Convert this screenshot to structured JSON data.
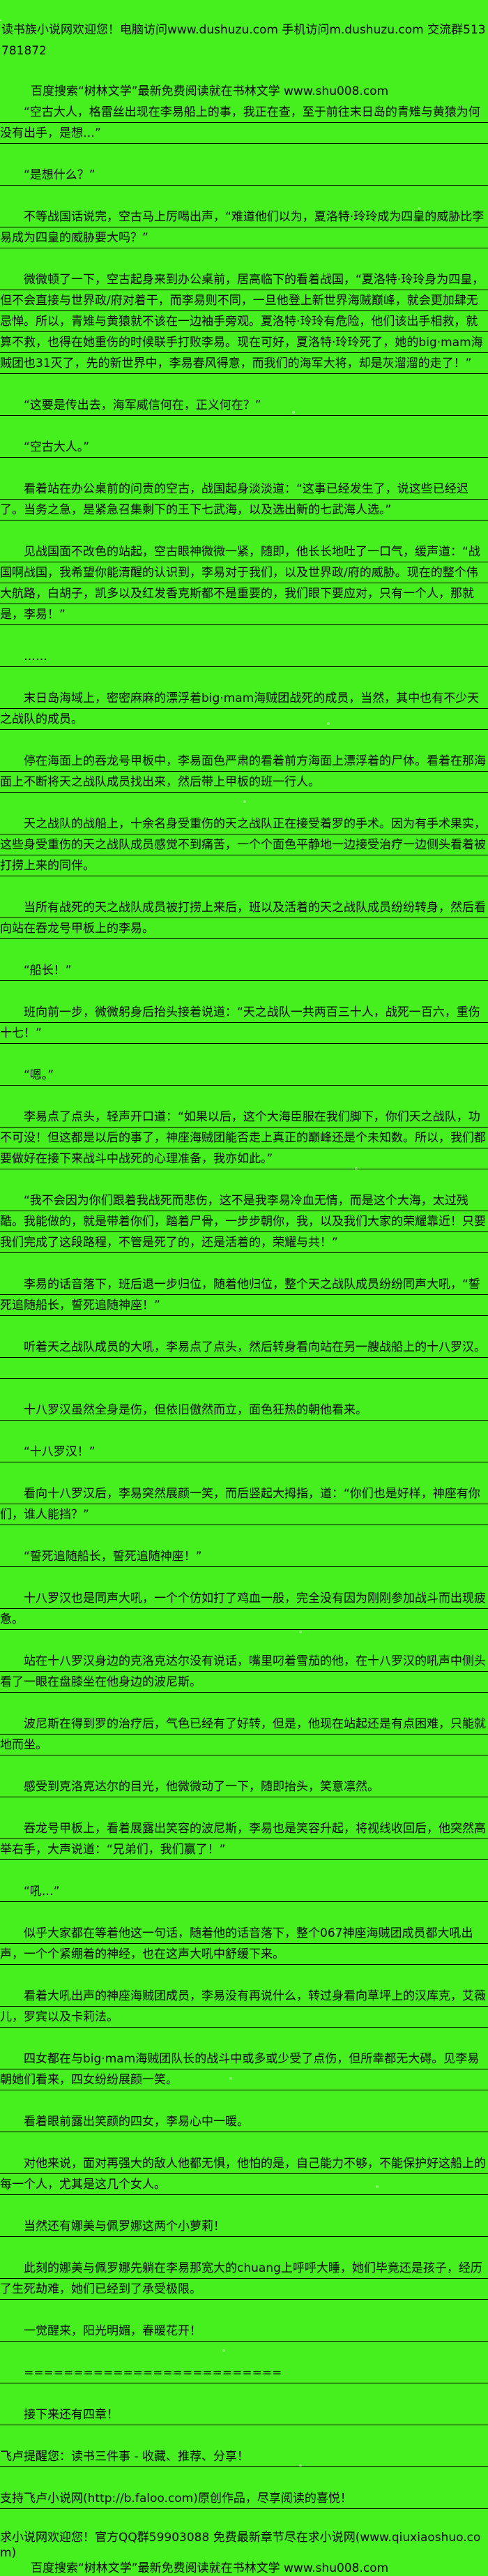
{
  "page": {
    "background_color": "#46F01E",
    "text_color": "#000000"
  },
  "header": {
    "line1": "读书族小说网欢迎您！电脑访问www.dushuzu.com 手机访问m.dushuzu.com 交流群513781872",
    "line2": "百度搜索“树林文学”最新免费阅读就在书林文学 www.shu008.com"
  },
  "content": {
    "paragraphs": [
      {
        "text": "“空古大人，格雷丝出现在李易船上的事，我正在查，至于前往末日岛的青雉与黄猿为何没有出手，是想…”",
        "indent": true,
        "underline": true,
        "tight": false
      },
      {
        "text": "“是想什么？”",
        "indent": true,
        "underline": true,
        "tight": false
      },
      {
        "text": "不等战国话说完，空古马上厉喝出声，“难道他们以为，夏洛特·玲玲成为四皇的威胁比李易成为四皇的威胁要大吗？”",
        "indent": true,
        "underline": true,
        "tight": false
      },
      {
        "text": "微微顿了一下，空古起身来到办公桌前，居高临下的看着战国，“夏洛特·玲玲身为四皇，但不会直接与世界政/府对着干，而李易则不同，一旦他登上新世界海贼巅峰，就会更加肆无忌惮。所以，青雉与黄猿就不该在一边袖手旁观。夏洛特·玲玲有危险，他们该出手相救，就算不救，也得在她重伤的时候联手打败李易。现在可好，夏洛特·玲玲死了，她的big·mam海贼团也31灭了，先的新世界中，李易春风得意，而我们的海军大将，却是灰溜溜的走了！”",
        "indent": true,
        "underline": true,
        "tight": false
      },
      {
        "text": "“这要是传出去，海军威信何在，正义何在？”",
        "indent": true,
        "underline": true,
        "tight": false
      },
      {
        "text": "“空古大人。”",
        "indent": true,
        "underline": true,
        "tight": false
      },
      {
        "text": "看着站在办公桌前的问责的空古，战国起身淡淡道：“这事已经发生了，说这些已经迟了。当务之急，是紧急召集剩下的王下七武海，以及选出新的七武海人选。”",
        "indent": true,
        "underline": true,
        "tight": false
      },
      {
        "text": "见战国面不改色的站起，空古眼神微微一紧，随即，他长长地吐了一口气，缓声道：“战国啊战国，我希望你能清醒的认识到，李易对于我们，以及世界政/府的威胁。现在的整个伟大航路，白胡子，凯多以及红发香克斯都不是重要的，我们眼下要应对，只有一个人，那就是，李易！”",
        "indent": true,
        "underline": true,
        "tight": false
      },
      {
        "text": "……",
        "indent": true,
        "underline": true,
        "tight": false
      },
      {
        "text": "末日岛海域上，密密麻麻的漂浮着big·mam海贼团战死的成员，当然，其中也有不少天之战队的成员。",
        "indent": true,
        "underline": true,
        "tight": false
      },
      {
        "text": "停在海面上的吞龙号甲板中，李易面色严肃的看着前方海面上漂浮着的尸体。看着在那海面上不断将天之战队成员找出来，然后带上甲板的班一行人。",
        "indent": true,
        "underline": true,
        "tight": false
      },
      {
        "text": "天之战队的战船上，十余名身受重伤的天之战队正在接受着罗的手术。因为有手术果实，这些身受重伤的天之战队成员感觉不到痛苦，一个个面色平静地一边接受治疗一边侧头看着被打捞上来的同伴。",
        "indent": true,
        "underline": true,
        "tight": false
      },
      {
        "text": "当所有战死的天之战队成员被打捞上来后，班以及活着的天之战队成员纷纷转身，然后看向站在吞龙号甲板上的李易。",
        "indent": true,
        "underline": true,
        "tight": false
      },
      {
        "text": "“船长！”",
        "indent": true,
        "underline": true,
        "tight": false
      },
      {
        "text": "班向前一步，微微躬身后抬头接着说道：“天之战队一共两百三十人，战死一百六，重伤十七！”",
        "indent": true,
        "underline": true,
        "tight": false
      },
      {
        "text": "“嗯。”",
        "indent": true,
        "underline": true,
        "tight": false
      },
      {
        "text": "李易点了点头，轻声开口道：“如果以后，这个大海臣服在我们脚下，你们天之战队，功不可没！但这都是以后的事了，神座海贼团能否走上真正的巅峰还是个未知数。所以，我们都要做好在接下来战斗中战死的心理准备，我亦如此。”",
        "indent": true,
        "underline": true,
        "tight": false
      },
      {
        "text": "“我不会因为你们跟着我战死而悲伤，这不是我李易冷血无情，而是这个大海，太过残酷。我能做的，就是带着你们，踏着尸骨，一步步朝你，我，以及我们大家的荣耀靠近！只要我们完成了这段路程，不管是死了的，还是活着的，荣耀与共！”",
        "indent": true,
        "underline": true,
        "tight": false
      },
      {
        "text": "李易的话音落下，班后退一步归位，随着他归位，整个天之战队成员纷纷同声大吼，“誓死追随船长，誓死追随神座！”",
        "indent": true,
        "underline": true,
        "tight": false
      },
      {
        "text": "听着天之战队成员的大吼，李易点了点头，然后转身看向站在另一艘战船上的十八罗汉。",
        "indent": true,
        "underline": true,
        "tight": true
      },
      {
        "text": "",
        "indent": false,
        "underline": true,
        "tight": false
      },
      {
        "text": "十八罗汉虽然全身是伤，但依旧傲然而立，面色狂热的朝他看来。",
        "indent": true,
        "underline": true,
        "tight": false
      },
      {
        "text": "“十八罗汉！”",
        "indent": true,
        "underline": true,
        "tight": false
      },
      {
        "text": "看向十八罗汉后，李易突然展颜一笑，而后竖起大拇指，道：“你们也是好样，神座有你们，谁人能挡？”",
        "indent": true,
        "underline": true,
        "tight": false
      },
      {
        "text": "“誓死追随船长，誓死追随神座！”",
        "indent": true,
        "underline": true,
        "tight": false
      },
      {
        "text": "十八罗汉也是同声大吼，一个个仿如打了鸡血一般，完全没有因为刚刚参加战斗而出现疲惫。",
        "indent": true,
        "underline": true,
        "tight": false
      },
      {
        "text": "站在十八罗汉身边的克洛克达尔没有说话，嘴里叼着雪茄的他，在十八罗汉的吼声中侧头看了一眼在盘膝坐在他身边的波尼斯。",
        "indent": true,
        "underline": true,
        "tight": false
      },
      {
        "text": "波尼斯在得到罗的治疗后，气色已经有了好转，但是，他现在站起还是有点困难，只能就地而坐。",
        "indent": true,
        "underline": true,
        "tight": false
      },
      {
        "text": "感受到克洛克达尔的目光，他微微动了一下，随即抬头，笑意凛然。",
        "indent": true,
        "underline": true,
        "tight": false
      },
      {
        "text": "吞龙号甲板上，看着展露出笑容的波尼斯，李易也是笑容升起，将视线收回后，他突然高举右手，大声说道：“兄弟们，我们赢了！”",
        "indent": true,
        "underline": true,
        "tight": false
      },
      {
        "text": "“吼…”",
        "indent": true,
        "underline": true,
        "tight": false
      },
      {
        "text": "似乎大家都在等着他这一句话，随着他的话音落下，整个067神座海贼团成员都大吼出声，一个个紧绷着的神经，也在这声大吼中舒缓下来。",
        "indent": true,
        "underline": true,
        "tight": false
      },
      {
        "text": "看着大吼出声的神座海贼团成员，李易没有再说什么，转过身看向草坪上的汉库克，艾薇儿，罗宾以及卡莉法。",
        "indent": true,
        "underline": true,
        "tight": false
      },
      {
        "text": "四女都在与big·mam海贼团队长的战斗中或多或少受了点伤，但所幸都无大碍。见李易朝她们看来，四女纷纷展颜一笑。",
        "indent": true,
        "underline": true,
        "tight": false
      },
      {
        "text": "看着眼前露出笑颜的四女，李易心中一暖。",
        "indent": true,
        "underline": true,
        "tight": false
      },
      {
        "text": "对他来说，面对再强大的敌人他都无惧，他怕的是，自己能力不够，不能保护好这船上的每一个人，尤其是这几个女人。",
        "indent": true,
        "underline": true,
        "tight": false
      },
      {
        "text": "当然还有娜美与佩罗娜这两个小萝莉！",
        "indent": true,
        "underline": true,
        "tight": false
      },
      {
        "text": "此刻的娜美与佩罗娜先躺在李易那宽大的chuang上呼呼大睡，她们毕竟还是孩子，经历了生死劫难，她们已经到了承受极限。",
        "indent": true,
        "underline": true,
        "tight": false
      },
      {
        "text": "一觉醒来，阳光明媚，春暖花开！",
        "indent": true,
        "underline": true,
        "tight": false
      },
      {
        "text": "==========================",
        "indent": true,
        "underline": true,
        "tight": false
      },
      {
        "text": "接下来还有四章！",
        "indent": true,
        "underline": true,
        "tight": false
      },
      {
        "text": "飞卢提醒您：读书三件事 - 收藏、推荐、分享！",
        "indent": false,
        "underline": true,
        "tight": false
      },
      {
        "text": "支持飞卢小说网(http://b.faloo.com)原创作品，尽享阅读的喜悦！",
        "indent": false,
        "underline": true,
        "tight": false
      }
    ]
  },
  "footer": {
    "line1": "求小说网欢迎您！官方QQ群59903088 免费最新章节尽在求小说网(www.qiuxiaoshuo.com)",
    "line2": "百度搜索“树林文学”最新免费阅读就在书林文学 www.shu008.com"
  }
}
